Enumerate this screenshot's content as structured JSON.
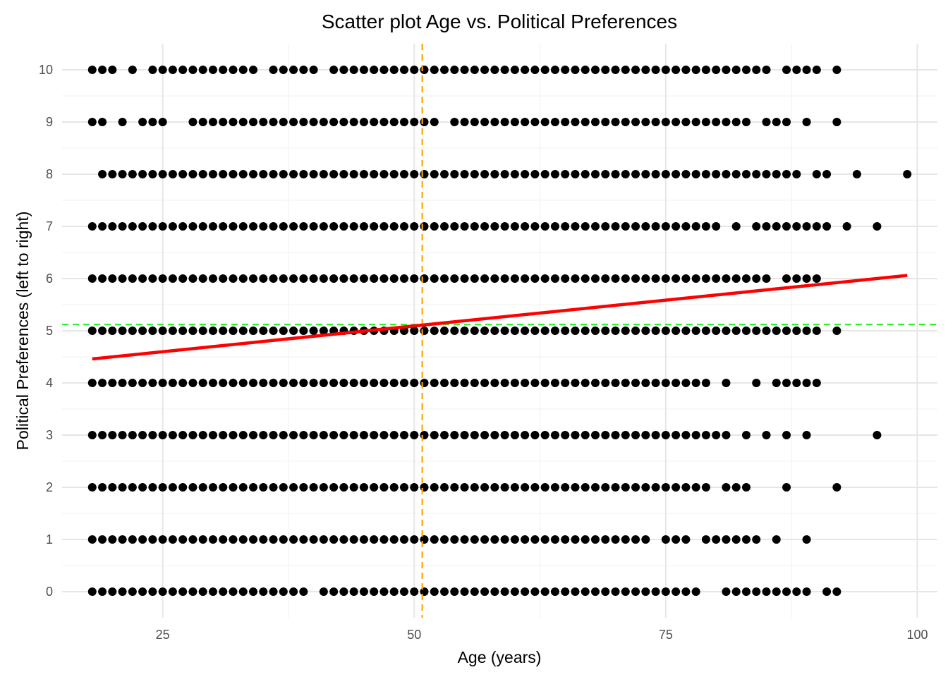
{
  "chart_data": {
    "type": "scatter",
    "title": "Scatter plot Age vs. Political Preferences",
    "xlabel": "Age (years)",
    "ylabel": "Political Preferences (left to right)",
    "xlim": [
      15,
      102
    ],
    "ylim": [
      -0.5,
      10.5
    ],
    "x_ticks": [
      25,
      50,
      75,
      100
    ],
    "y_ticks": [
      0,
      1,
      2,
      3,
      4,
      5,
      6,
      7,
      8,
      9,
      10
    ],
    "grid": true,
    "legend": "none",
    "point_color": "#000000",
    "points": [
      {
        "y": 10,
        "ages": [
          18,
          19,
          20,
          22,
          24,
          25,
          26,
          27,
          28,
          29,
          30,
          31,
          32,
          33,
          34,
          36,
          37,
          38,
          39,
          40,
          42,
          43,
          44,
          45,
          46,
          47,
          48,
          49,
          50,
          51,
          52,
          53,
          54,
          55,
          56,
          57,
          58,
          59,
          60,
          61,
          62,
          63,
          64,
          65,
          66,
          67,
          68,
          69,
          70,
          71,
          72,
          73,
          74,
          75,
          76,
          77,
          78,
          79,
          80,
          81,
          82,
          83,
          84,
          85,
          87,
          88,
          89,
          90,
          92
        ]
      },
      {
        "y": 9,
        "ages": [
          18,
          19,
          21,
          23,
          24,
          25,
          28,
          29,
          30,
          31,
          32,
          33,
          34,
          35,
          36,
          37,
          38,
          39,
          40,
          41,
          42,
          43,
          44,
          45,
          46,
          47,
          48,
          49,
          50,
          51,
          52,
          54,
          55,
          56,
          57,
          58,
          59,
          60,
          61,
          62,
          63,
          64,
          65,
          66,
          67,
          68,
          69,
          70,
          71,
          72,
          73,
          74,
          75,
          76,
          77,
          78,
          79,
          80,
          81,
          82,
          83,
          85,
          86,
          87,
          89,
          92
        ]
      },
      {
        "y": 8,
        "ages": [
          19,
          20,
          21,
          22,
          23,
          24,
          25,
          26,
          27,
          28,
          29,
          30,
          31,
          32,
          33,
          34,
          35,
          36,
          37,
          38,
          39,
          40,
          41,
          42,
          43,
          44,
          45,
          46,
          47,
          48,
          49,
          50,
          51,
          52,
          53,
          54,
          55,
          56,
          57,
          58,
          59,
          60,
          61,
          62,
          63,
          64,
          65,
          66,
          67,
          68,
          69,
          70,
          71,
          72,
          73,
          74,
          75,
          76,
          77,
          78,
          79,
          80,
          81,
          82,
          83,
          84,
          85,
          86,
          87,
          88,
          90,
          91,
          94,
          99
        ]
      },
      {
        "y": 7,
        "ages": [
          18,
          19,
          20,
          21,
          22,
          23,
          24,
          25,
          26,
          27,
          28,
          29,
          30,
          31,
          32,
          33,
          34,
          35,
          36,
          37,
          38,
          39,
          40,
          41,
          42,
          43,
          44,
          45,
          46,
          47,
          48,
          49,
          50,
          51,
          52,
          53,
          54,
          55,
          56,
          57,
          58,
          59,
          60,
          61,
          62,
          63,
          64,
          65,
          66,
          67,
          68,
          69,
          70,
          71,
          72,
          73,
          74,
          75,
          76,
          77,
          78,
          79,
          80,
          82,
          84,
          85,
          86,
          87,
          88,
          89,
          90,
          91,
          93,
          96
        ]
      },
      {
        "y": 6,
        "ages": [
          18,
          19,
          20,
          21,
          22,
          23,
          24,
          25,
          26,
          27,
          28,
          29,
          30,
          31,
          32,
          33,
          34,
          35,
          36,
          37,
          38,
          39,
          40,
          41,
          42,
          43,
          44,
          45,
          46,
          47,
          48,
          49,
          50,
          51,
          52,
          53,
          54,
          55,
          56,
          57,
          58,
          59,
          60,
          61,
          62,
          63,
          64,
          65,
          66,
          67,
          68,
          69,
          70,
          71,
          72,
          73,
          74,
          75,
          76,
          77,
          78,
          79,
          80,
          81,
          82,
          83,
          84,
          85,
          87,
          88,
          89,
          90
        ]
      },
      {
        "y": 5,
        "ages": [
          18,
          19,
          20,
          21,
          22,
          23,
          24,
          25,
          26,
          27,
          28,
          29,
          30,
          31,
          32,
          33,
          34,
          35,
          36,
          37,
          38,
          39,
          40,
          41,
          42,
          43,
          44,
          45,
          46,
          47,
          48,
          49,
          50,
          51,
          52,
          53,
          54,
          55,
          56,
          57,
          58,
          59,
          60,
          61,
          62,
          63,
          64,
          65,
          66,
          67,
          68,
          69,
          70,
          71,
          72,
          73,
          74,
          75,
          76,
          77,
          78,
          79,
          80,
          81,
          82,
          83,
          84,
          85,
          86,
          87,
          88,
          89,
          90,
          92
        ]
      },
      {
        "y": 4,
        "ages": [
          18,
          19,
          20,
          21,
          22,
          23,
          24,
          25,
          26,
          27,
          28,
          29,
          30,
          31,
          32,
          33,
          34,
          35,
          36,
          37,
          38,
          39,
          40,
          41,
          42,
          43,
          44,
          45,
          46,
          47,
          48,
          49,
          50,
          51,
          52,
          53,
          54,
          55,
          56,
          57,
          58,
          59,
          60,
          61,
          62,
          63,
          64,
          65,
          66,
          67,
          68,
          69,
          70,
          71,
          72,
          73,
          74,
          75,
          76,
          77,
          78,
          79,
          81,
          84,
          86,
          87,
          88,
          89,
          90
        ]
      },
      {
        "y": 3,
        "ages": [
          18,
          19,
          20,
          21,
          22,
          23,
          24,
          25,
          26,
          27,
          28,
          29,
          30,
          31,
          32,
          33,
          34,
          35,
          36,
          37,
          38,
          39,
          40,
          41,
          42,
          43,
          44,
          45,
          46,
          47,
          48,
          49,
          50,
          51,
          52,
          53,
          54,
          55,
          56,
          57,
          58,
          59,
          60,
          61,
          62,
          63,
          64,
          65,
          66,
          67,
          68,
          69,
          70,
          71,
          72,
          73,
          74,
          75,
          76,
          77,
          78,
          79,
          80,
          81,
          83,
          85,
          87,
          89,
          96
        ]
      },
      {
        "y": 2,
        "ages": [
          18,
          19,
          20,
          21,
          22,
          23,
          24,
          25,
          26,
          27,
          28,
          29,
          30,
          31,
          32,
          33,
          34,
          35,
          36,
          37,
          38,
          39,
          40,
          41,
          42,
          43,
          44,
          45,
          46,
          47,
          48,
          49,
          50,
          51,
          52,
          53,
          54,
          55,
          56,
          57,
          58,
          59,
          60,
          61,
          62,
          63,
          64,
          65,
          66,
          67,
          68,
          69,
          70,
          71,
          72,
          73,
          74,
          75,
          76,
          77,
          78,
          79,
          81,
          82,
          83,
          87,
          92
        ]
      },
      {
        "y": 1,
        "ages": [
          18,
          19,
          20,
          21,
          22,
          23,
          24,
          25,
          26,
          27,
          28,
          29,
          30,
          31,
          32,
          33,
          34,
          35,
          36,
          37,
          38,
          39,
          40,
          41,
          42,
          43,
          44,
          45,
          46,
          47,
          48,
          49,
          50,
          51,
          52,
          53,
          54,
          55,
          56,
          57,
          58,
          59,
          60,
          61,
          62,
          63,
          64,
          65,
          66,
          67,
          68,
          69,
          70,
          71,
          72,
          73,
          75,
          76,
          77,
          79,
          80,
          81,
          82,
          83,
          84,
          86,
          89
        ]
      },
      {
        "y": 0,
        "ages": [
          18,
          19,
          20,
          21,
          22,
          23,
          24,
          25,
          26,
          27,
          28,
          29,
          30,
          31,
          32,
          33,
          34,
          35,
          36,
          37,
          38,
          39,
          41,
          42,
          43,
          44,
          45,
          46,
          47,
          48,
          49,
          50,
          51,
          52,
          53,
          54,
          55,
          56,
          57,
          58,
          59,
          60,
          61,
          62,
          63,
          64,
          65,
          66,
          67,
          68,
          69,
          70,
          71,
          72,
          73,
          74,
          75,
          76,
          77,
          78,
          81,
          82,
          83,
          84,
          85,
          86,
          87,
          88,
          89,
          91,
          92
        ]
      }
    ],
    "regression_line": {
      "color": "#ff0000",
      "from": [
        18,
        4.46
      ],
      "to": [
        99,
        6.06
      ]
    },
    "mean_age_line": {
      "value": 50.8,
      "color": "#ffa500",
      "style": "dashed",
      "orientation": "vertical"
    },
    "mean_preference_line": {
      "value": 5.12,
      "color": "#33ee33",
      "style": "dashed",
      "orientation": "horizontal"
    }
  }
}
